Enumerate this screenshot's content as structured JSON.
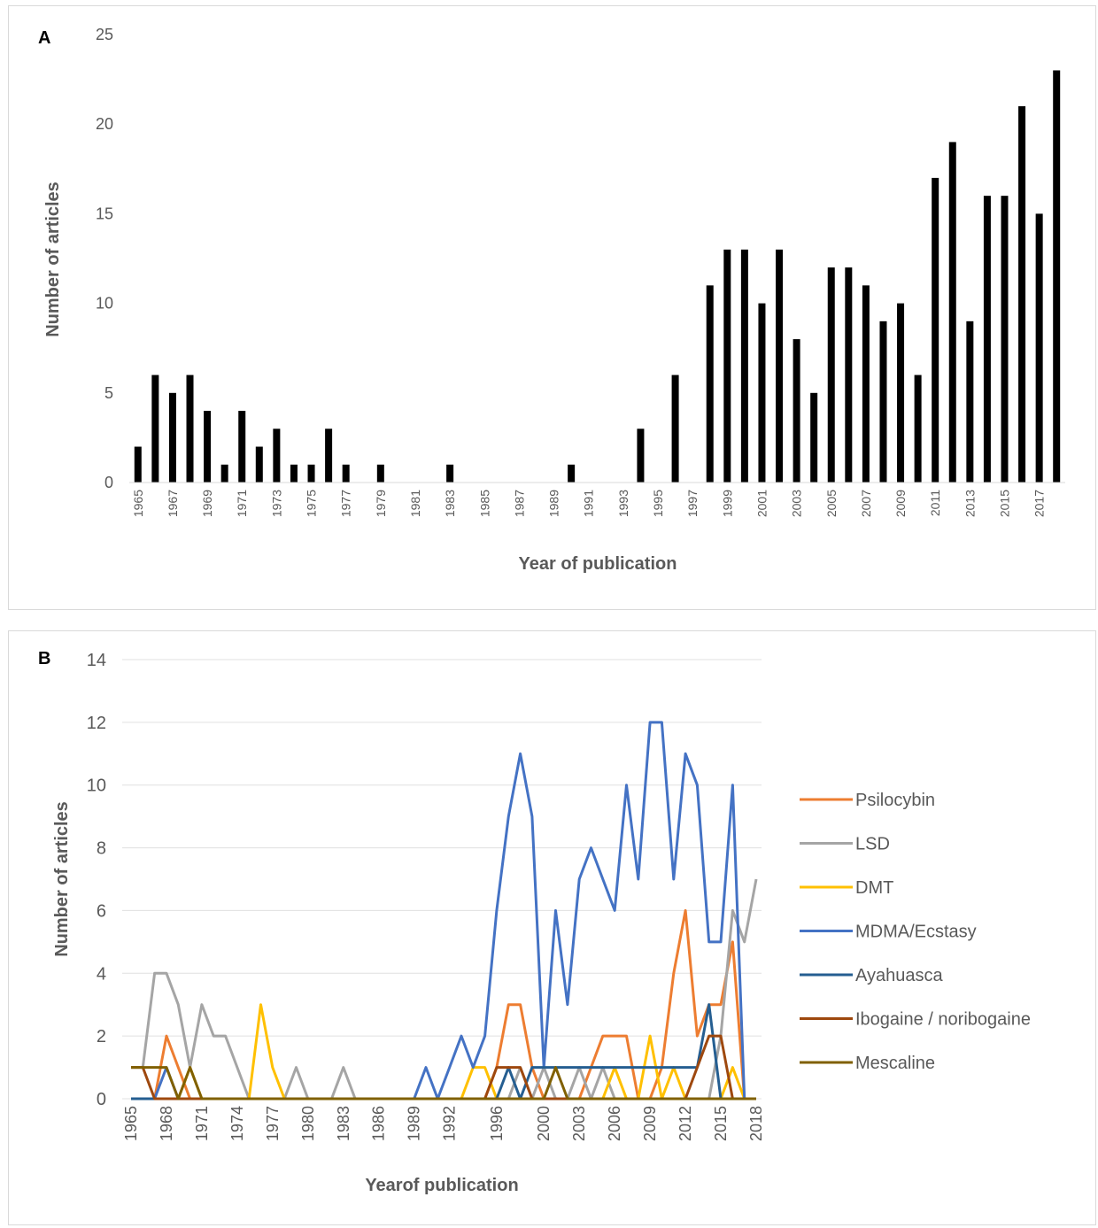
{
  "chart_data": [
    {
      "type": "bar",
      "panel_label": "A",
      "xlabel": "Year of publication",
      "ylabel": "Number of articles",
      "ylim": [
        0,
        25
      ],
      "yticks": [
        0,
        5,
        10,
        15,
        20,
        25
      ],
      "grid": false,
      "bar_color": "#000000",
      "categories": [
        "1965",
        "1966",
        "1967",
        "1968",
        "1969",
        "1970",
        "1971",
        "1972",
        "1973",
        "1974",
        "1975",
        "1976",
        "1977",
        "1978",
        "1979",
        "1980",
        "1981",
        "1982",
        "1983",
        "1984",
        "1985",
        "1986",
        "1987",
        "1988",
        "1989",
        "1990",
        "1991",
        "1992",
        "1993",
        "1994",
        "1995",
        "1996",
        "1997",
        "1998",
        "1999",
        "2000",
        "2001",
        "2002",
        "2003",
        "2004",
        "2005",
        "2006",
        "2007",
        "2008",
        "2009",
        "2010",
        "2011",
        "2012",
        "2013",
        "2014",
        "2015",
        "2016",
        "2017",
        "2018"
      ],
      "tick_labels": [
        "1965",
        "1967",
        "1969",
        "1971",
        "1973",
        "1975",
        "1977",
        "1979",
        "1981",
        "1983",
        "1985",
        "1987",
        "1989",
        "1991",
        "1993",
        "1995",
        "1997",
        "1999",
        "2001",
        "2003",
        "2005",
        "2007",
        "2009",
        "2011",
        "2013",
        "2015",
        "2017"
      ],
      "values": [
        2,
        6,
        5,
        6,
        4,
        1,
        4,
        2,
        3,
        1,
        1,
        3,
        1,
        0,
        1,
        0,
        0,
        0,
        1,
        0,
        0,
        0,
        0,
        0,
        0,
        1,
        0,
        0,
        0,
        3,
        0,
        6,
        0,
        11,
        13,
        13,
        10,
        13,
        8,
        5,
        12,
        12,
        11,
        9,
        10,
        6,
        17,
        19,
        9,
        16,
        16,
        21,
        15,
        23
      ]
    },
    {
      "type": "line",
      "panel_label": "B",
      "xlabel": "Yearof publication",
      "ylabel": "Number of articles",
      "ylim": [
        0,
        14
      ],
      "yticks": [
        0,
        2,
        4,
        6,
        8,
        10,
        12,
        14
      ],
      "grid": true,
      "legend_position": "right",
      "x": [
        1965,
        1966,
        1967,
        1968,
        1969,
        1970,
        1971,
        1972,
        1973,
        1974,
        1975,
        1976,
        1977,
        1978,
        1979,
        1980,
        1981,
        1982,
        1983,
        1984,
        1985,
        1986,
        1987,
        1988,
        1989,
        1990,
        1991,
        1992,
        1993,
        1994,
        1995,
        1996,
        1997,
        1998,
        1999,
        2000,
        2001,
        2002,
        2003,
        2004,
        2005,
        2006,
        2007,
        2008,
        2009,
        2010,
        2011,
        2012,
        2013,
        2014,
        2015,
        2016,
        2017,
        2018
      ],
      "tick_labels": [
        "1965",
        "1968",
        "1971",
        "1974",
        "1977",
        "1980",
        "1983",
        "1986",
        "1989",
        "1992",
        "1996",
        "2000",
        "2003",
        "2006",
        "2009",
        "2012",
        "2015",
        "2018"
      ],
      "series": [
        {
          "name": "Psilocybin",
          "color": "#ED7D31",
          "values": [
            0,
            0,
            0,
            2,
            1,
            0,
            0,
            0,
            0,
            0,
            0,
            0,
            0,
            0,
            0,
            0,
            0,
            0,
            0,
            0,
            0,
            0,
            0,
            0,
            0,
            0,
            0,
            0,
            0,
            0,
            0,
            1,
            3,
            3,
            1,
            0,
            0,
            0,
            0,
            1,
            2,
            2,
            2,
            0,
            0,
            1,
            4,
            6,
            2,
            3,
            3,
            5,
            0,
            0
          ]
        },
        {
          "name": "LSD",
          "color": "#A5A5A5",
          "values": [
            1,
            1,
            4,
            4,
            3,
            1,
            3,
            2,
            2,
            1,
            0,
            0,
            0,
            0,
            1,
            0,
            0,
            0,
            1,
            0,
            0,
            0,
            0,
            0,
            0,
            0,
            0,
            0,
            0,
            0,
            0,
            0,
            0,
            1,
            0,
            1,
            0,
            0,
            1,
            0,
            1,
            0,
            0,
            0,
            0,
            0,
            0,
            0,
            0,
            0,
            2,
            6,
            5,
            7
          ]
        },
        {
          "name": "DMT",
          "color": "#FFC000",
          "values": [
            0,
            0,
            0,
            0,
            0,
            1,
            0,
            0,
            0,
            0,
            0,
            3,
            1,
            0,
            0,
            0,
            0,
            0,
            0,
            0,
            0,
            0,
            0,
            0,
            0,
            0,
            0,
            0,
            0,
            1,
            1,
            0,
            0,
            0,
            0,
            0,
            0,
            0,
            0,
            0,
            0,
            1,
            0,
            0,
            2,
            0,
            1,
            0,
            0,
            0,
            0,
            1,
            0,
            0
          ]
        },
        {
          "name": "MDMA/Ecstasy",
          "color": "#4472C4",
          "values": [
            0,
            0,
            0,
            1,
            0,
            0,
            0,
            0,
            0,
            0,
            0,
            0,
            0,
            0,
            0,
            0,
            0,
            0,
            0,
            0,
            0,
            0,
            0,
            0,
            0,
            1,
            0,
            1,
            2,
            1,
            2,
            6,
            9,
            11,
            9,
            1,
            6,
            3,
            7,
            8,
            7,
            6,
            10,
            7,
            12,
            12,
            7,
            11,
            10,
            5,
            5,
            10,
            0,
            0
          ]
        },
        {
          "name": "Ayahuasca",
          "color": "#255E91",
          "values": [
            0,
            0,
            0,
            0,
            0,
            0,
            0,
            0,
            0,
            0,
            0,
            0,
            0,
            0,
            0,
            0,
            0,
            0,
            0,
            0,
            0,
            0,
            0,
            0,
            0,
            0,
            0,
            0,
            0,
            0,
            0,
            0,
            1,
            0,
            1,
            1,
            1,
            1,
            1,
            1,
            1,
            1,
            1,
            1,
            1,
            1,
            1,
            1,
            1,
            3,
            0,
            0,
            0,
            0
          ]
        },
        {
          "name": "Ibogaine / noribogaine",
          "color": "#9E480E",
          "values": [
            1,
            1,
            0,
            0,
            0,
            0,
            0,
            0,
            0,
            0,
            0,
            0,
            0,
            0,
            0,
            0,
            0,
            0,
            0,
            0,
            0,
            0,
            0,
            0,
            0,
            0,
            0,
            0,
            0,
            0,
            0,
            1,
            1,
            1,
            0,
            0,
            0,
            0,
            0,
            0,
            0,
            0,
            0,
            0,
            0,
            0,
            0,
            0,
            1,
            2,
            2,
            0,
            0,
            0
          ]
        },
        {
          "name": "Mescaline",
          "color": "#806000",
          "values": [
            1,
            1,
            1,
            1,
            0,
            1,
            0,
            0,
            0,
            0,
            0,
            0,
            0,
            0,
            0,
            0,
            0,
            0,
            0,
            0,
            0,
            0,
            0,
            0,
            0,
            0,
            0,
            0,
            0,
            0,
            0,
            0,
            0,
            0,
            0,
            0,
            1,
            0,
            0,
            0,
            0,
            0,
            0,
            0,
            0,
            0,
            0,
            0,
            0,
            0,
            0,
            0,
            0,
            0
          ]
        }
      ]
    }
  ]
}
